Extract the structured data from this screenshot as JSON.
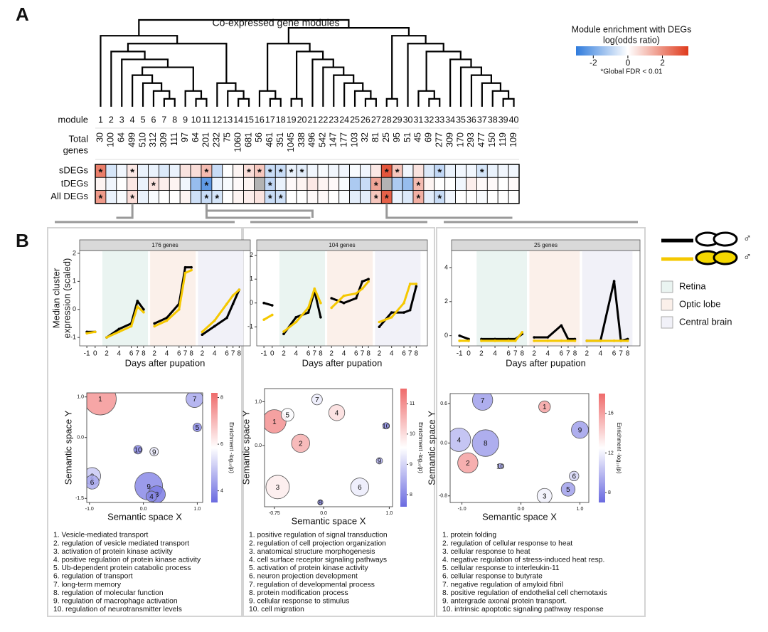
{
  "panel_a": {
    "label": "A",
    "title": "Co-expressed gene modules",
    "module_label": "module",
    "genes_label": [
      "Total",
      "genes"
    ],
    "modules": [
      1,
      2,
      3,
      4,
      5,
      6,
      7,
      8,
      9,
      10,
      11,
      12,
      13,
      14,
      15,
      16,
      17,
      18,
      19,
      20,
      21,
      22,
      23,
      24,
      25,
      26,
      27,
      28,
      29,
      30,
      31,
      32,
      33,
      34,
      35,
      36,
      37,
      38,
      39,
      40
    ],
    "total_genes": [
      30,
      100,
      64,
      499,
      510,
      312,
      309,
      111,
      97,
      64,
      201,
      232,
      75,
      1060,
      681,
      56,
      461,
      351,
      1045,
      338,
      496,
      542,
      147,
      177,
      103,
      32,
      81,
      25,
      95,
      51,
      45,
      69,
      277,
      309,
      170,
      293,
      477,
      150,
      119,
      109
    ],
    "star": "*",
    "legend": {
      "title": "Module enrichment with DEGs",
      "subtitle": "log(odds ratio)",
      "ticks": [
        -2,
        0,
        2
      ],
      "range": [
        -3,
        3.5
      ],
      "note": "*Global FDR < 0.01"
    },
    "rows": [
      {
        "name": "sDEGs",
        "values": [
          2.3,
          -0.6,
          -0.2,
          0.4,
          -0.3,
          -0.3,
          -0.5,
          -0.3,
          0.5,
          0.6,
          1.2,
          -0.8,
          0,
          0.2,
          0.6,
          1.0,
          -0.8,
          -0.8,
          -0.3,
          -0.4,
          -0.2,
          -0.1,
          -0.2,
          -0.2,
          -0.1,
          -0.2,
          0.4,
          3.0,
          1.0,
          -0.2,
          0.5,
          -0.5,
          -0.9,
          -0.3,
          -0.2,
          -0.2,
          -0.6,
          -0.3,
          -0.2,
          -0.2
        ],
        "significant": [
          1,
          4,
          11,
          15,
          16,
          17,
          18,
          19,
          20,
          28,
          29,
          33,
          37
        ]
      },
      {
        "name": "tDEGs",
        "values": [
          0.2,
          -0.2,
          0,
          0.4,
          -0.3,
          0.5,
          0.3,
          0.2,
          -0.2,
          -1.5,
          -2.3,
          -0.3,
          -0.1,
          0.1,
          0.2,
          null,
          -0.9,
          -0.3,
          0.1,
          0.2,
          0.4,
          0.2,
          0.1,
          -0.1,
          -1.2,
          -0.8,
          1.6,
          null,
          -1.2,
          -1.5,
          1.2,
          0.2,
          0,
          0,
          -0.2,
          0.3,
          0.1,
          0.1,
          0,
          0.1
        ],
        "significant": [
          6,
          11,
          17,
          27,
          31
        ]
      },
      {
        "name": "All DEGs",
        "values": [
          1.8,
          -0.3,
          -0.1,
          0.6,
          -0.3,
          -0.1,
          0,
          0,
          0.2,
          -0.7,
          -0.8,
          -0.6,
          0,
          0.2,
          0.3,
          0.5,
          -0.8,
          -0.7,
          0,
          0,
          0.1,
          0.1,
          0,
          -0.1,
          -0.4,
          -0.4,
          1.0,
          2.8,
          -0.3,
          -0.5,
          1.4,
          -0.4,
          -0.8,
          -0.2,
          0,
          0,
          -0.1,
          0,
          0,
          0
        ],
        "significant": [
          1,
          4,
          11,
          12,
          17,
          18,
          27,
          28,
          31,
          33
        ]
      }
    ]
  },
  "panel_b": {
    "label": "B",
    "sex_symbol": "♂",
    "line_colors": [
      "#000000",
      "#f5c800"
    ],
    "tissues": [
      {
        "name": "Retina",
        "color": "#eaf4f1"
      },
      {
        "name": "Optic lobe",
        "color": "#fbf0ea"
      },
      {
        "name": "Central brain",
        "color": "#f1f1f8"
      }
    ],
    "segments_x": [
      [
        -1,
        0
      ],
      [
        2,
        4,
        6,
        7,
        8
      ],
      [
        2,
        4,
        6,
        7,
        8
      ],
      [
        2,
        4,
        6,
        7,
        8
      ]
    ],
    "segment_tissue": [
      null,
      0,
      1,
      2
    ],
    "ylabel": [
      "Median cluster",
      "expression (scaled)"
    ],
    "xlabel": "Days after pupation",
    "bubble_xlabel": "Semantic space X",
    "bubble_ylabel": "Semantic space Y",
    "cbar_label": "Enrichment -log₁₀(p)",
    "panels": [
      {
        "title": "176 genes",
        "ylim": [
          -1.3,
          2.1
        ],
        "yticks": [
          -1,
          0,
          1,
          2
        ],
        "series": [
          {
            "values": [
              [
                -0.8,
                -0.8
              ],
              [
                -1.0,
                -0.7,
                -0.5,
                0.3,
                0.0
              ],
              [
                -0.5,
                -0.3,
                0.2,
                1.5,
                1.5
              ],
              [
                -0.9,
                -0.6,
                -0.3,
                0.2,
                0.7
              ]
            ]
          },
          {
            "values": [
              [
                -0.85,
                -0.8
              ],
              [
                -1.0,
                -0.8,
                -0.6,
                0.1,
                -0.1
              ],
              [
                -0.6,
                -0.4,
                0.0,
                1.3,
                1.4
              ],
              [
                -0.8,
                -0.4,
                0.2,
                0.5,
                0.7
              ]
            ]
          }
        ],
        "bubble": {
          "xlim": [
            -1.05,
            1.1
          ],
          "ylim": [
            -1.6,
            1.1
          ],
          "xticks": [
            {
              "value": -1,
              "label": "-1.0"
            },
            {
              "value": 0,
              "label": "0.0"
            },
            {
              "value": 1,
              "label": "1.0"
            }
          ],
          "yticks": [
            {
              "value": 1,
              "label": "1.0"
            },
            {
              "value": 0,
              "label": "0.0"
            },
            -1.5
          ],
          "clim": [
            3.5,
            8.2
          ],
          "cticks": [
            4,
            6,
            8
          ],
          "labels": [
            1,
            7,
            5,
            10,
            9,
            2,
            6,
            9,
            3,
            4
          ],
          "x": [
            -0.8,
            0.95,
            1.0,
            -0.1,
            0.2,
            -0.95,
            -0.95,
            0.1,
            0.25,
            0.15
          ],
          "y": [
            0.95,
            0.95,
            0.25,
            -0.3,
            -0.35,
            -0.95,
            -1.1,
            -1.2,
            -1.4,
            -1.45
          ],
          "sizes": [
            30,
            16,
            8,
            8,
            8,
            16,
            13,
            26,
            16,
            10
          ],
          "enrichment": [
            7.5,
            4.5,
            4.0,
            4.0,
            5.5,
            5.0,
            4.5,
            4.0,
            3.8,
            4.0
          ],
          "terms": [
            "1. Vesicle-mediated transport",
            "2. regulation of vesicle mediated transport",
            "3. activation of protein kinase activity",
            "4. positive regulation of protein kinase activity",
            "5. Ub-dependent protein catabolic process",
            "6. regulation of transport",
            "7. long-term memory",
            "8. regulation of molecular function",
            "9. regulation of macrophage activation",
            "10. regulation of neurotransmitter levels"
          ]
        }
      },
      {
        "title": "104 genes",
        "ylim": [
          -1.8,
          2.2
        ],
        "yticks": [
          -1,
          0,
          1,
          2
        ],
        "series": [
          {
            "values": [
              [
                0.0,
                -0.1
              ],
              [
                -1.3,
                -0.6,
                -0.4,
                0.5,
                -0.6
              ],
              [
                0.2,
                0.0,
                0.2,
                0.9,
                1.0
              ],
              [
                -1.0,
                -0.4,
                -0.4,
                -0.3,
                0.7
              ]
            ]
          },
          {
            "values": [
              [
                -0.7,
                -0.5
              ],
              [
                -1.2,
                -0.8,
                -0.2,
                0.6,
                0.0
              ],
              [
                -0.2,
                0.3,
                0.4,
                0.6,
                0.9
              ],
              [
                -0.8,
                -0.6,
                0.0,
                0.8,
                0.8
              ]
            ]
          }
        ],
        "bubble": {
          "xlim": [
            -0.9,
            1.05
          ],
          "ylim": [
            -1.4,
            1.3
          ],
          "xticks": [
            -0.75,
            {
              "value": 0,
              "label": "0.0"
            },
            {
              "value": 1,
              "label": "1.0"
            }
          ],
          "yticks": [
            {
              "value": 1,
              "label": "1.0"
            },
            {
              "value": 0,
              "label": "0.0"
            }
          ],
          "clim": [
            7.6,
            11.5
          ],
          "cticks": [
            8,
            9,
            10,
            11
          ],
          "labels": [
            1,
            5,
            7,
            4,
            10,
            2,
            9,
            3,
            6,
            8
          ],
          "x": [
            -0.75,
            -0.55,
            -0.1,
            0.2,
            0.95,
            -0.35,
            0.85,
            -0.7,
            0.55,
            -0.05
          ],
          "y": [
            0.55,
            0.7,
            1.05,
            0.75,
            0.45,
            0.05,
            -0.35,
            -0.95,
            -0.95,
            -1.3
          ],
          "sizes": [
            22,
            12,
            10,
            15,
            6,
            17,
            6,
            22,
            17,
            5
          ],
          "enrichment": [
            11,
            9.5,
            9.3,
            10,
            8,
            10.6,
            8.5,
            9.8,
            9.3,
            8
          ],
          "terms": [
            "1. positive regulation of signal transduction",
            "2. regulation of cell projection organization",
            "3. anatomical structure morphogenesis",
            "4. cell surface receptor signaling pathways",
            "5. activation of protein kinase activity",
            "6. neuron projection development",
            "7. regulation of developmental process",
            "8. protein modification process",
            "9. cellular response to stimulus",
            "10. cell migration"
          ]
        }
      },
      {
        "title": "25 genes",
        "ylim": [
          -0.6,
          5
        ],
        "yticks": [
          0,
          2,
          4
        ],
        "series": [
          {
            "values": [
              [
                0.0,
                -0.2
              ],
              [
                -0.2,
                -0.2,
                -0.2,
                -0.2,
                0.1
              ],
              [
                -0.1,
                -0.1,
                0.6,
                -0.2,
                -0.2
              ],
              [
                -0.3,
                -0.3,
                3.2,
                -0.3,
                -0.2
              ]
            ]
          },
          {
            "values": [
              [
                -0.3,
                -0.3
              ],
              [
                -0.3,
                -0.3,
                -0.3,
                -0.3,
                0.2
              ],
              [
                -0.3,
                -0.3,
                -0.3,
                -0.3,
                -0.3
              ],
              [
                -0.3,
                -0.3,
                -0.3,
                -0.3,
                -0.3
              ]
            ]
          }
        ],
        "bubble": {
          "xlim": [
            -1.2,
            1.15
          ],
          "ylim": [
            -0.9,
            0.75
          ],
          "xticks": [
            {
              "value": -1,
              "label": "-1.0"
            },
            {
              "value": 0,
              "label": "0.0"
            },
            {
              "value": 1,
              "label": "1.0"
            }
          ],
          "yticks": [
            0.6,
            {
              "value": 0,
              "label": "0.0"
            },
            -0.8
          ],
          "clim": [
            7,
            18
          ],
          "cticks": [
            8,
            12,
            16
          ],
          "labels": [
            7,
            1,
            9,
            4,
            8,
            2,
            10,
            6,
            5,
            3
          ],
          "x": [
            -0.65,
            0.4,
            1.0,
            -1.05,
            -0.6,
            -0.9,
            -0.35,
            0.9,
            0.8,
            0.4
          ],
          "y": [
            0.65,
            0.55,
            0.2,
            0.05,
            0.0,
            -0.3,
            -0.35,
            -0.5,
            -0.7,
            -0.8
          ],
          "sizes": [
            19,
            11,
            16,
            22,
            25,
            19,
            5,
            9,
            13,
            14
          ],
          "enrichment": [
            9,
            16,
            9,
            10,
            9,
            16,
            9,
            11,
            9,
            12
          ],
          "terms": [
            "1. protein folding",
            "2. regulation of cellular response to heat",
            "3. cellular response to heat",
            "4. negative regulation of stress-induced heat resp.",
            "5. cellular response to interleukin-11",
            "6. cellular response to butyrate",
            "7. negative regulation of amyloid fibril",
            "8. positive regulation of endothelial cell chemotaxis",
            "9. antergrade axonal protein transport.",
            "10. intrinsic apoptotic signaling pathway response"
          ]
        }
      }
    ]
  }
}
